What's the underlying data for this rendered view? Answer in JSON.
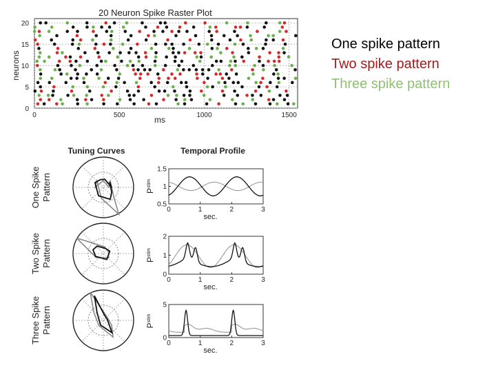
{
  "legend": {
    "one": "One spike pattern",
    "two": "Two spike pattern",
    "three": "Three spike pattern"
  },
  "chart_data": [
    {
      "type": "scatter",
      "title": "20 Neuron Spike Raster Plot",
      "xlabel": "ms",
      "ylabel": "neurons",
      "xlim": [
        0,
        1550
      ],
      "ylim": [
        0,
        21
      ],
      "xticks": [
        0,
        500,
        1000,
        1500
      ],
      "yticks": [
        0,
        5,
        10,
        15,
        20
      ],
      "grid": true,
      "series": [
        {
          "name": "One spike pattern",
          "color": "#111111",
          "pattern": "sparse random spikes across neurons 1-20"
        },
        {
          "name": "Two spike pattern",
          "color": "#d42a2a",
          "pattern": "sparse random spikes across neurons 1-20"
        },
        {
          "name": "Three spike pattern",
          "color": "#6ab04c",
          "pattern": "sparse random spikes across neurons 1-20"
        }
      ]
    },
    {
      "type": "polar",
      "title": "Tuning Curves",
      "rows": [
        "One Spike Pattern",
        "Two Spike Pattern",
        "Three Spike Pattern"
      ]
    },
    {
      "type": "line",
      "title": "Temporal Profile",
      "xlabel": "sec.",
      "ylabel": "P",
      "ylabel_sub": "stim",
      "xlim": [
        0,
        3
      ],
      "xticks": [
        0,
        1,
        2,
        3
      ],
      "panels": [
        {
          "ylim": [
            0.5,
            1.5
          ],
          "yticks": [
            "0.5",
            "1",
            "1.5"
          ]
        },
        {
          "ylim": [
            0,
            2
          ],
          "yticks": [
            "0",
            "1",
            "2"
          ]
        },
        {
          "ylim": [
            0,
            5
          ],
          "yticks": [
            "0",
            "5"
          ]
        }
      ]
    }
  ]
}
